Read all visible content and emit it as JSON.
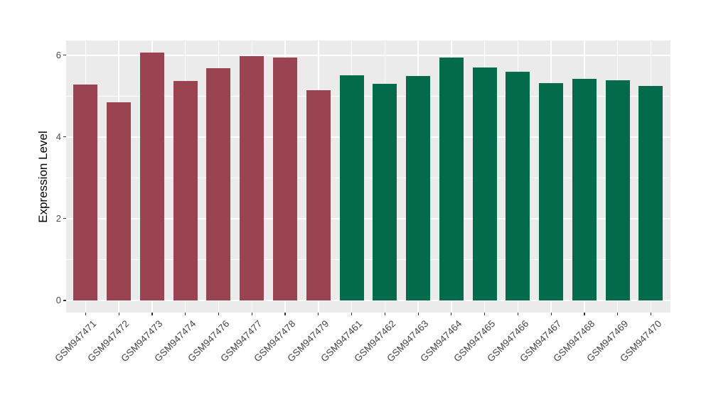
{
  "chart_data": {
    "type": "bar",
    "title": "",
    "xlabel": "",
    "ylabel": "Expression Level",
    "ylim": [
      0,
      6.37
    ],
    "yticks_major": [
      0,
      2,
      4,
      6
    ],
    "yticks_minor": [
      1,
      3,
      5
    ],
    "grid": true,
    "legend_position": "none",
    "panel_background": "#EBEBEB",
    "grid_color": "#FFFFFF",
    "tick_color": "#333333",
    "tick_label_color": "#4D4D4D",
    "axis_title_color": "#000000",
    "groups": [
      {
        "name": "group-1",
        "color": "#9A4452"
      },
      {
        "name": "group-2",
        "color": "#026B4B"
      }
    ],
    "categories": [
      "GSM947471",
      "GSM947472",
      "GSM947473",
      "GSM947474",
      "GSM947476",
      "GSM947477",
      "GSM947478",
      "GSM947479",
      "GSM947461",
      "GSM947462",
      "GSM947463",
      "GSM947464",
      "GSM947465",
      "GSM947466",
      "GSM947467",
      "GSM947468",
      "GSM947469",
      "GSM947470"
    ],
    "values": [
      5.28,
      4.84,
      6.07,
      5.37,
      5.69,
      5.98,
      5.94,
      5.14,
      5.51,
      5.3,
      5.49,
      5.95,
      5.7,
      5.59,
      5.32,
      5.42,
      5.38,
      5.24
    ],
    "bar_groups": [
      0,
      0,
      0,
      0,
      0,
      0,
      0,
      0,
      1,
      1,
      1,
      1,
      1,
      1,
      1,
      1,
      1,
      1
    ]
  }
}
